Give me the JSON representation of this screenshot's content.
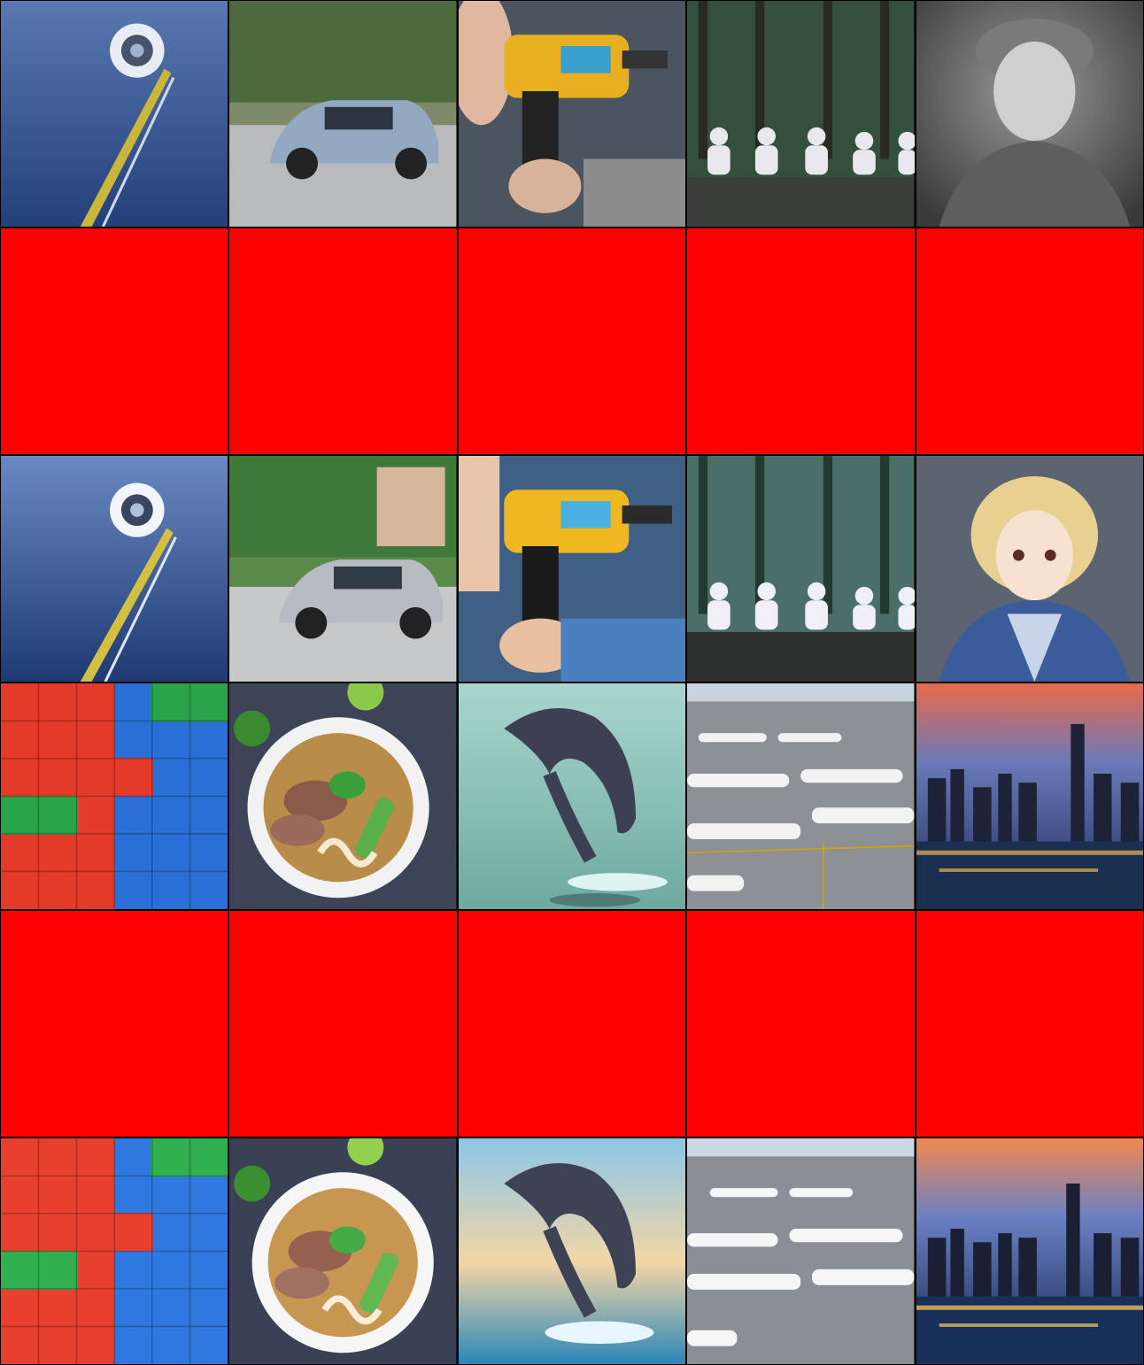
{
  "grid": {
    "columns": 5,
    "rows": 6,
    "colors": {
      "border": "#000000",
      "placeholder": "#ff0000"
    },
    "cells": [
      {
        "row": 0,
        "col": 0,
        "kind": "image",
        "subject": "space-station"
      },
      {
        "row": 0,
        "col": 1,
        "kind": "image",
        "subject": "car"
      },
      {
        "row": 0,
        "col": 2,
        "kind": "image",
        "subject": "drill"
      },
      {
        "row": 0,
        "col": 3,
        "kind": "image",
        "subject": "robots-forest"
      },
      {
        "row": 0,
        "col": 4,
        "kind": "image",
        "subject": "child-portrait-bw"
      },
      {
        "row": 1,
        "col": 0,
        "kind": "placeholder"
      },
      {
        "row": 1,
        "col": 1,
        "kind": "placeholder"
      },
      {
        "row": 1,
        "col": 2,
        "kind": "placeholder"
      },
      {
        "row": 1,
        "col": 3,
        "kind": "placeholder"
      },
      {
        "row": 1,
        "col": 4,
        "kind": "placeholder"
      },
      {
        "row": 2,
        "col": 0,
        "kind": "image",
        "subject": "space-station-stylized"
      },
      {
        "row": 2,
        "col": 1,
        "kind": "image",
        "subject": "car-stylized"
      },
      {
        "row": 2,
        "col": 2,
        "kind": "image",
        "subject": "drill-stylized"
      },
      {
        "row": 2,
        "col": 3,
        "kind": "image",
        "subject": "robots-forest-stylized"
      },
      {
        "row": 2,
        "col": 4,
        "kind": "image",
        "subject": "child-portrait-anime"
      },
      {
        "row": 3,
        "col": 0,
        "kind": "image",
        "subject": "lego-bricks"
      },
      {
        "row": 3,
        "col": 1,
        "kind": "image",
        "subject": "pho-bowl"
      },
      {
        "row": 3,
        "col": 2,
        "kind": "image",
        "subject": "dolphin"
      },
      {
        "row": 3,
        "col": 3,
        "kind": "image",
        "subject": "airplanes-airport"
      },
      {
        "row": 3,
        "col": 4,
        "kind": "image",
        "subject": "city-skyline"
      },
      {
        "row": 4,
        "col": 0,
        "kind": "placeholder"
      },
      {
        "row": 4,
        "col": 1,
        "kind": "placeholder"
      },
      {
        "row": 4,
        "col": 2,
        "kind": "placeholder"
      },
      {
        "row": 4,
        "col": 3,
        "kind": "placeholder"
      },
      {
        "row": 4,
        "col": 4,
        "kind": "placeholder"
      },
      {
        "row": 5,
        "col": 0,
        "kind": "image",
        "subject": "lego-bricks-stylized"
      },
      {
        "row": 5,
        "col": 1,
        "kind": "image",
        "subject": "pho-bowl-stylized"
      },
      {
        "row": 5,
        "col": 2,
        "kind": "image",
        "subject": "dolphin-stylized"
      },
      {
        "row": 5,
        "col": 3,
        "kind": "image",
        "subject": "airplanes-airport-stylized"
      },
      {
        "row": 5,
        "col": 4,
        "kind": "image",
        "subject": "city-skyline-stylized"
      }
    ]
  }
}
